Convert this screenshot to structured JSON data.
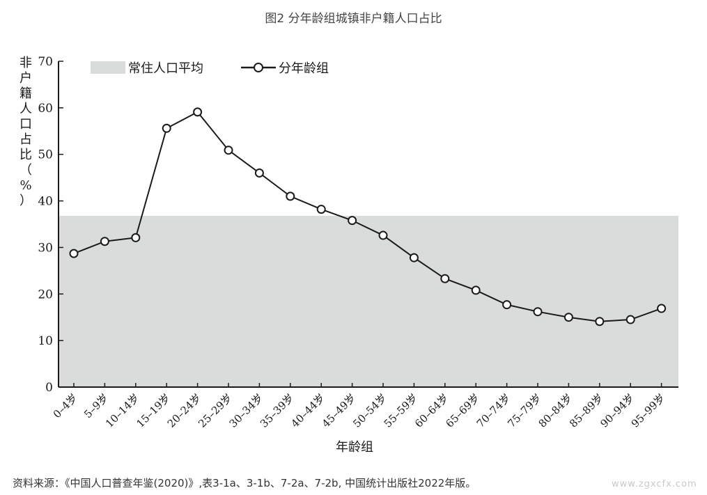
{
  "chart_data": {
    "type": "line",
    "title": "图2 分年龄组城镇非户籍人口占比",
    "xlabel": "年龄组",
    "ylabel": "非户籍人口占比（%）",
    "ylim": [
      0,
      70
    ],
    "yticks": [
      0,
      10,
      20,
      30,
      40,
      50,
      60,
      70
    ],
    "categories": [
      "0–4岁",
      "5–9岁",
      "10–14岁",
      "15–19岁",
      "20–24岁",
      "25–29岁",
      "30–34岁",
      "35–39岁",
      "40–44岁",
      "45–49岁",
      "50–54岁",
      "55–59岁",
      "60–64岁",
      "65–69岁",
      "70–74岁",
      "75–79岁",
      "80–84岁",
      "85–89岁",
      "90–94岁",
      "95–99岁"
    ],
    "series": [
      {
        "name": "分年龄组",
        "values": [
          28.7,
          31.3,
          32.1,
          55.6,
          59.1,
          50.9,
          46.0,
          41.0,
          38.2,
          35.8,
          32.6,
          27.8,
          23.3,
          20.8,
          17.7,
          16.2,
          15.0,
          14.1,
          14.5,
          16.9
        ]
      }
    ],
    "reference_band": {
      "name": "常住人口平均",
      "value": 36.8,
      "color": "#dadcdc"
    },
    "legend": {
      "position": "top-left",
      "items": [
        "常住人口平均",
        "分年龄组"
      ]
    },
    "grid": false,
    "colors": {
      "line": "#1a1a1a",
      "marker_fill": "#ffffff",
      "band": "#dadcdc"
    }
  },
  "source_note": "资料来源：《中国人口普查年鉴(2020)》,表3-1a、3-1b、7-2a、7-2b, 中国统计出版社2022年版。",
  "watermark": "www.zgxcfx.com"
}
